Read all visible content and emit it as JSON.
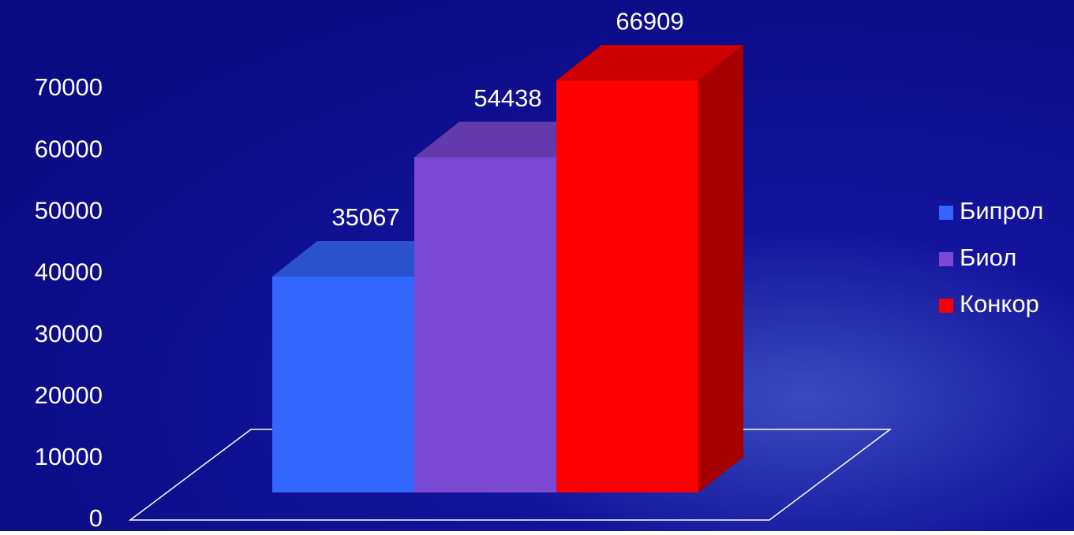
{
  "chart_data": {
    "type": "bar3d",
    "series": [
      {
        "name": "Бипрол",
        "color": "#3366ff",
        "values": [
          35067
        ]
      },
      {
        "name": "Биол",
        "color": "#7b48d4",
        "values": [
          54438
        ]
      },
      {
        "name": "Конкор",
        "color": "#ff0000",
        "values": [
          66909
        ]
      }
    ],
    "ylim": [
      0,
      70000
    ],
    "yticks": [
      0,
      10000,
      20000,
      30000,
      40000,
      50000,
      60000,
      70000
    ],
    "legend": "right"
  }
}
